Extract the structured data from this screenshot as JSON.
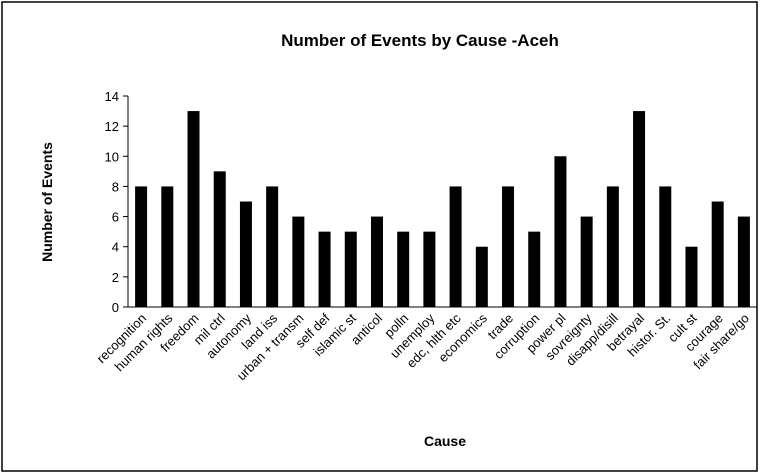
{
  "chart_data": {
    "type": "bar",
    "title": "Number of Events by Cause -Aceh",
    "x_label": "Cause",
    "y_label": "Number of Events",
    "categories": [
      "recognition",
      "human rights",
      "freedom",
      "mil ctrl",
      "autonomy",
      "land iss",
      "urban + transm",
      "self def",
      "islamic st",
      "anticol",
      "polln",
      "unemploy",
      "edc, hlth etc",
      "economics",
      "trade",
      "corruption",
      "power pl",
      "sovreignty",
      "disapp/disill",
      "betrayal",
      "histor. St.",
      "cult st",
      "courage",
      "fair share/go"
    ],
    "values": [
      8,
      8,
      13,
      9,
      7,
      8,
      6,
      5,
      5,
      6,
      5,
      5,
      8,
      4,
      8,
      5,
      10,
      6,
      8,
      13,
      8,
      4,
      7,
      6
    ],
    "color": "#000000",
    "ylim": [
      0,
      14
    ],
    "yticks": [
      0,
      2,
      4,
      6,
      8,
      10,
      12,
      14
    ],
    "grid": false
  }
}
